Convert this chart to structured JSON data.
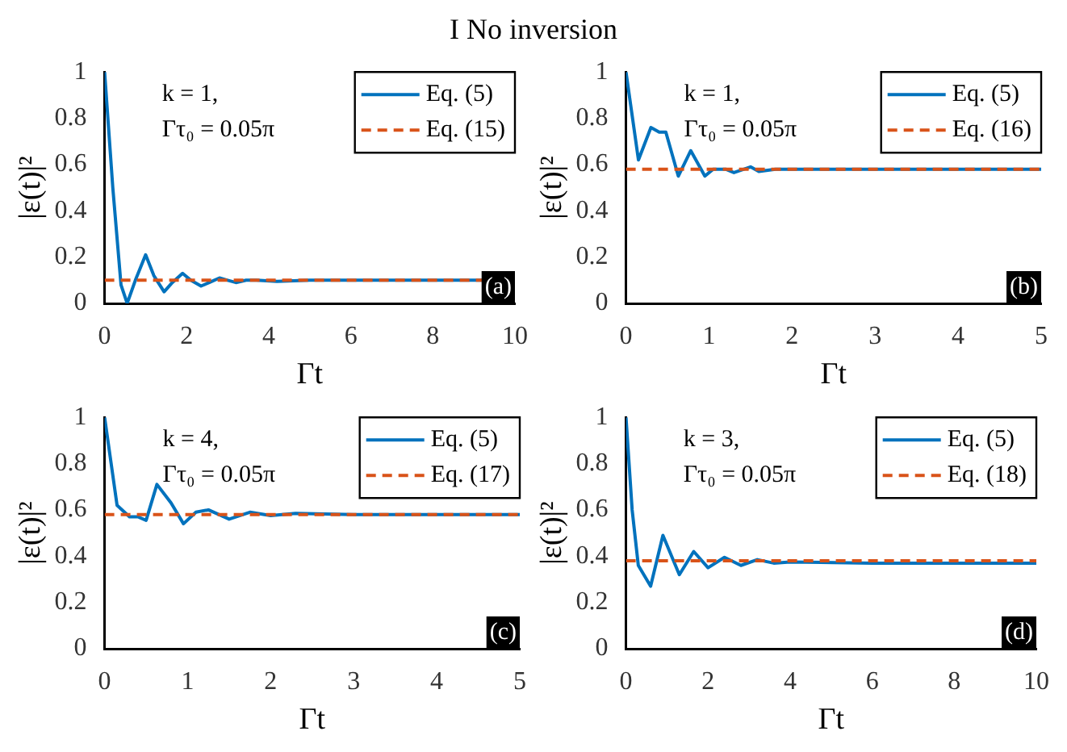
{
  "chart_data": [
    {
      "type": "line",
      "title": "I No inversion",
      "xlabel": "Γt",
      "ylabel": "|ε(t)|²",
      "xlim": [
        0,
        10
      ],
      "xticks": [
        0,
        2,
        4,
        6,
        8,
        10
      ],
      "ylim": [
        0,
        1
      ],
      "yticks": [
        0,
        0.2,
        0.4,
        0.6,
        0.8,
        1
      ],
      "grid": false,
      "legend": "top right",
      "marker": "none",
      "annotations": [
        "k = 1,",
        "Γτ₀ = 0.05π",
        "(a)"
      ],
      "series": [
        {
          "name": "Eq. (5)",
          "color": "#0072bd",
          "line_style": "solid",
          "x": [
            0,
            0.2,
            0.4,
            0.55,
            0.75,
            1.0,
            1.2,
            1.45,
            1.65,
            1.9,
            2.1,
            2.35,
            2.55,
            2.8,
            3.0,
            3.2,
            3.45,
            3.7,
            4.2,
            5,
            6,
            8,
            10
          ],
          "values": [
            1,
            0.5,
            0.08,
            0,
            0.1,
            0.21,
            0.12,
            0.05,
            0.09,
            0.13,
            0.1,
            0.075,
            0.09,
            0.11,
            0.1,
            0.09,
            0.1,
            0.1,
            0.095,
            0.1,
            0.1,
            0.1,
            0.1
          ]
        },
        {
          "name": "Eq. (15)",
          "color": "#d95319",
          "line_style": "dashed",
          "x": [
            0,
            10
          ],
          "values": [
            0.1,
            0.1
          ]
        }
      ]
    },
    {
      "type": "line",
      "xlabel": "Γt",
      "ylabel": "|ε(t)|²",
      "xlim": [
        0,
        5
      ],
      "xticks": [
        0,
        1,
        2,
        3,
        4,
        5
      ],
      "ylim": [
        0,
        1
      ],
      "yticks": [
        0,
        0.2,
        0.4,
        0.6,
        0.8,
        1
      ],
      "grid": false,
      "legend": "top right",
      "marker": "none",
      "annotations": [
        "k = 1,",
        "Γτ₀ = 0.05π",
        "(b)"
      ],
      "series": [
        {
          "name": "Eq. (5)",
          "color": "#0072bd",
          "line_style": "solid",
          "x": [
            0,
            0.15,
            0.3,
            0.4,
            0.48,
            0.63,
            0.78,
            0.95,
            1.05,
            1.2,
            1.3,
            1.5,
            1.6,
            1.8,
            2.5,
            5
          ],
          "values": [
            1,
            0.62,
            0.76,
            0.74,
            0.74,
            0.55,
            0.66,
            0.55,
            0.58,
            0.58,
            0.565,
            0.59,
            0.57,
            0.58,
            0.58,
            0.58
          ]
        },
        {
          "name": "Eq. (16)",
          "color": "#d95319",
          "line_style": "dashed",
          "x": [
            0,
            5
          ],
          "values": [
            0.58,
            0.58
          ]
        }
      ]
    },
    {
      "type": "line",
      "xlabel": "Γt",
      "ylabel": "|ε(t)|²",
      "xlim": [
        0,
        5
      ],
      "xticks": [
        0,
        1,
        2,
        3,
        4,
        5
      ],
      "ylim": [
        0,
        1
      ],
      "yticks": [
        0,
        0.2,
        0.4,
        0.6,
        0.8,
        1
      ],
      "grid": false,
      "legend": "top right",
      "marker": "none",
      "annotations": [
        "k = 4,",
        "Γτ₀ = 0.05π",
        "(c)"
      ],
      "series": [
        {
          "name": "Eq. (5)",
          "color": "#0072bd",
          "line_style": "solid",
          "x": [
            0,
            0.15,
            0.3,
            0.4,
            0.5,
            0.63,
            0.8,
            0.95,
            1.1,
            1.25,
            1.5,
            1.75,
            2.0,
            2.3,
            3,
            5
          ],
          "values": [
            1,
            0.62,
            0.57,
            0.57,
            0.555,
            0.71,
            0.63,
            0.54,
            0.59,
            0.6,
            0.56,
            0.59,
            0.575,
            0.585,
            0.58,
            0.58
          ]
        },
        {
          "name": "Eq. (17)",
          "color": "#d95319",
          "line_style": "dashed",
          "x": [
            0,
            5
          ],
          "values": [
            0.58,
            0.58
          ]
        }
      ]
    },
    {
      "type": "line",
      "xlabel": "Γt",
      "ylabel": "|ε(t)|²",
      "xlim": [
        0,
        10
      ],
      "xticks": [
        0,
        2,
        4,
        6,
        8,
        10
      ],
      "ylim": [
        0,
        1
      ],
      "yticks": [
        0,
        0.2,
        0.4,
        0.6,
        0.8,
        1
      ],
      "grid": false,
      "legend": "top right",
      "marker": "none",
      "annotations": [
        "k = 3,",
        "Γτ₀ = 0.05π",
        "(d)"
      ],
      "series": [
        {
          "name": "Eq. (5)",
          "color": "#0072bd",
          "line_style": "solid",
          "x": [
            0,
            0.15,
            0.3,
            0.6,
            0.9,
            1.3,
            1.65,
            2.0,
            2.4,
            2.8,
            3.2,
            3.6,
            4,
            6,
            10
          ],
          "values": [
            1,
            0.6,
            0.36,
            0.27,
            0.49,
            0.32,
            0.42,
            0.35,
            0.395,
            0.36,
            0.385,
            0.37,
            0.375,
            0.37,
            0.37
          ]
        },
        {
          "name": "Eq. (18)",
          "color": "#d95319",
          "line_style": "dashed",
          "x": [
            0,
            10
          ],
          "values": [
            0.38,
            0.38
          ]
        }
      ]
    }
  ]
}
